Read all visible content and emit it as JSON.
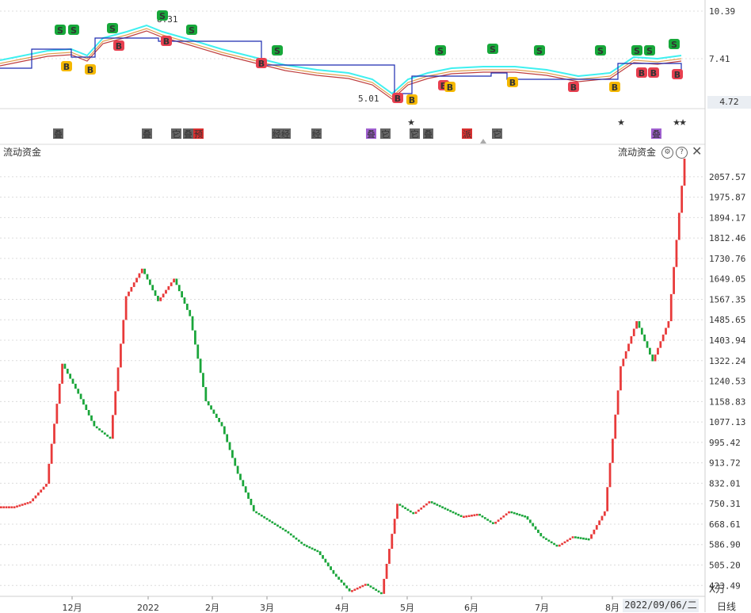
{
  "top_panel": {
    "price_labels": [
      "10.39",
      "7.41"
    ],
    "current_price": "4.72",
    "high_annotation": "8.31",
    "low_annotation": "5.01",
    "signal_markers": [
      {
        "label": "S",
        "kind": "sell-green",
        "x_category": 2
      },
      {
        "label": "B",
        "kind": "buy-red",
        "x_category": 5
      }
    ],
    "event_tags": [
      "叠",
      "叠",
      "它",
      "叠",
      "预",
      "经",
      "经",
      "经",
      "叠",
      "它",
      "它",
      "叠",
      "派",
      "它",
      "叠"
    ],
    "star_glyph": "★"
  },
  "bottom_panel": {
    "indicator_name": "流动资金",
    "indicator_name_right": "流动资金",
    "unit": "X万",
    "y_ticks": [
      "2057.57",
      "1975.87",
      "1894.17",
      "1812.46",
      "1730.76",
      "1649.05",
      "1567.35",
      "1485.65",
      "1403.94",
      "1322.24",
      "1240.53",
      "1158.83",
      "1077.13",
      "995.42",
      "913.72",
      "832.01",
      "750.31",
      "668.61",
      "586.90",
      "505.20",
      "423.49"
    ]
  },
  "x_axis": {
    "labels": [
      "12月",
      "2022",
      "2月",
      "3月",
      "4月",
      "5月",
      "6月",
      "7月",
      "8月"
    ]
  },
  "status": {
    "date": "2022/09/06/二",
    "period": "日线"
  },
  "colors": {
    "up": "#e83a3a",
    "down": "#1aa53a",
    "cyan": "#3ff0f0",
    "navy": "#1c2bb0",
    "ma1": "#e0a050",
    "ma2": "#c04040"
  },
  "chart_data": {
    "type": "bar",
    "title": "流动资金",
    "ylabel": "X万",
    "ylim": [
      380,
      2130
    ],
    "categories": [
      "2021-11-10",
      "2021-11-17",
      "2021-11-24",
      "2021-12-01",
      "2021-12-08",
      "2021-12-15",
      "2021-12-22",
      "2021-12-29",
      "2022-01-05",
      "2022-01-12",
      "2022-01-19",
      "2022-01-26",
      "2022-02-09",
      "2022-02-16",
      "2022-02-23",
      "2022-03-02",
      "2022-03-09",
      "2022-03-16",
      "2022-03-23",
      "2022-03-30",
      "2022-04-06",
      "2022-04-13",
      "2022-04-20",
      "2022-04-27",
      "2022-05-04",
      "2022-05-11",
      "2022-05-18",
      "2022-05-25",
      "2022-06-01",
      "2022-06-08",
      "2022-06-15",
      "2022-06-22",
      "2022-06-29",
      "2022-07-06",
      "2022-07-13",
      "2022-07-20",
      "2022-07-27",
      "2022-08-03",
      "2022-08-10",
      "2022-08-17",
      "2022-08-24",
      "2022-08-31",
      "2022-09-06"
    ],
    "series": [
      {
        "values": [
          740,
          760,
          830,
          1310,
          1190,
          1060,
          1010,
          1580,
          1690,
          1560,
          1650,
          1500,
          1160,
          1060,
          870,
          720,
          680,
          640,
          590,
          560,
          470,
          400,
          430,
          390,
          750,
          710,
          760,
          730,
          700,
          710,
          670,
          720,
          700,
          620,
          580,
          620,
          610,
          720,
          1300,
          1480,
          1320,
          1480,
          2130
        ]
      }
    ]
  }
}
